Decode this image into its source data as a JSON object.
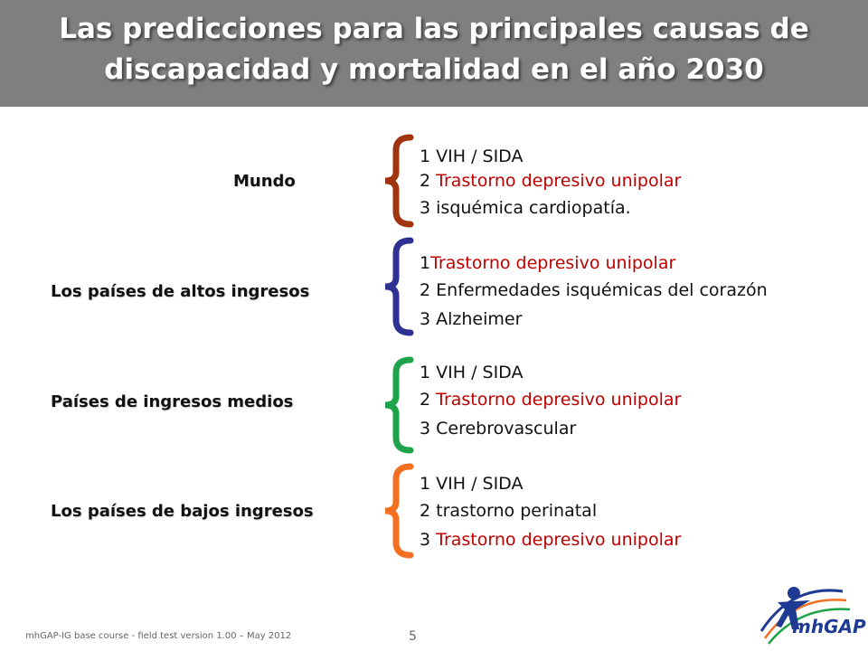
{
  "title": {
    "line1": "Las predicciones para las principales causas de",
    "line2": "discapacidad y mortalidad en el año 2030"
  },
  "groups": [
    {
      "label": "Mundo",
      "brace_color": "#a0340e",
      "items": [
        {
          "num": "1 ",
          "text": "VIH / SIDA",
          "highlight": false
        },
        {
          "num": "2 ",
          "text": "Trastorno depresivo unipolar",
          "highlight": true
        },
        {
          "num": "3 ",
          "text": "isquémica cardiopatía.",
          "highlight": false
        }
      ]
    },
    {
      "label": "Los países de altos ingresos",
      "brace_color": "#2e3192",
      "items": [
        {
          "num": "1",
          "text": "Trastorno depresivo unipolar",
          "highlight": true
        },
        {
          "num": "2 ",
          "text": "Enfermedades isquémicas del corazón",
          "highlight": false
        },
        {
          "num": "3 ",
          "text": "Alzheimer",
          "highlight": false
        }
      ]
    },
    {
      "label": "Países de ingresos medios",
      "brace_color": "#1fa34a",
      "items": [
        {
          "num": "1 ",
          "text": "VIH / SIDA",
          "highlight": false
        },
        {
          "num": "2 ",
          "text": "Trastorno depresivo unipolar",
          "highlight": true
        },
        {
          "num": "3 ",
          "text": "Cerebrovascular",
          "highlight": false
        }
      ]
    },
    {
      "label": "Los países de bajos ingresos",
      "brace_color": "#f36f21",
      "items": [
        {
          "num": "1 ",
          "text": "VIH / SIDA",
          "highlight": false
        },
        {
          "num": "2 ",
          "text": "trastorno perinatal",
          "highlight": false
        },
        {
          "num": "3 ",
          "text": "Trastorno depresivo unipolar",
          "highlight": true
        }
      ]
    }
  ],
  "footer": {
    "text": "mhGAP-IG base course -  field test version 1.00 – May 2012",
    "page": "5"
  },
  "logo": {
    "text": "mhGAP",
    "icon": "person-figure-logo-icon"
  }
}
